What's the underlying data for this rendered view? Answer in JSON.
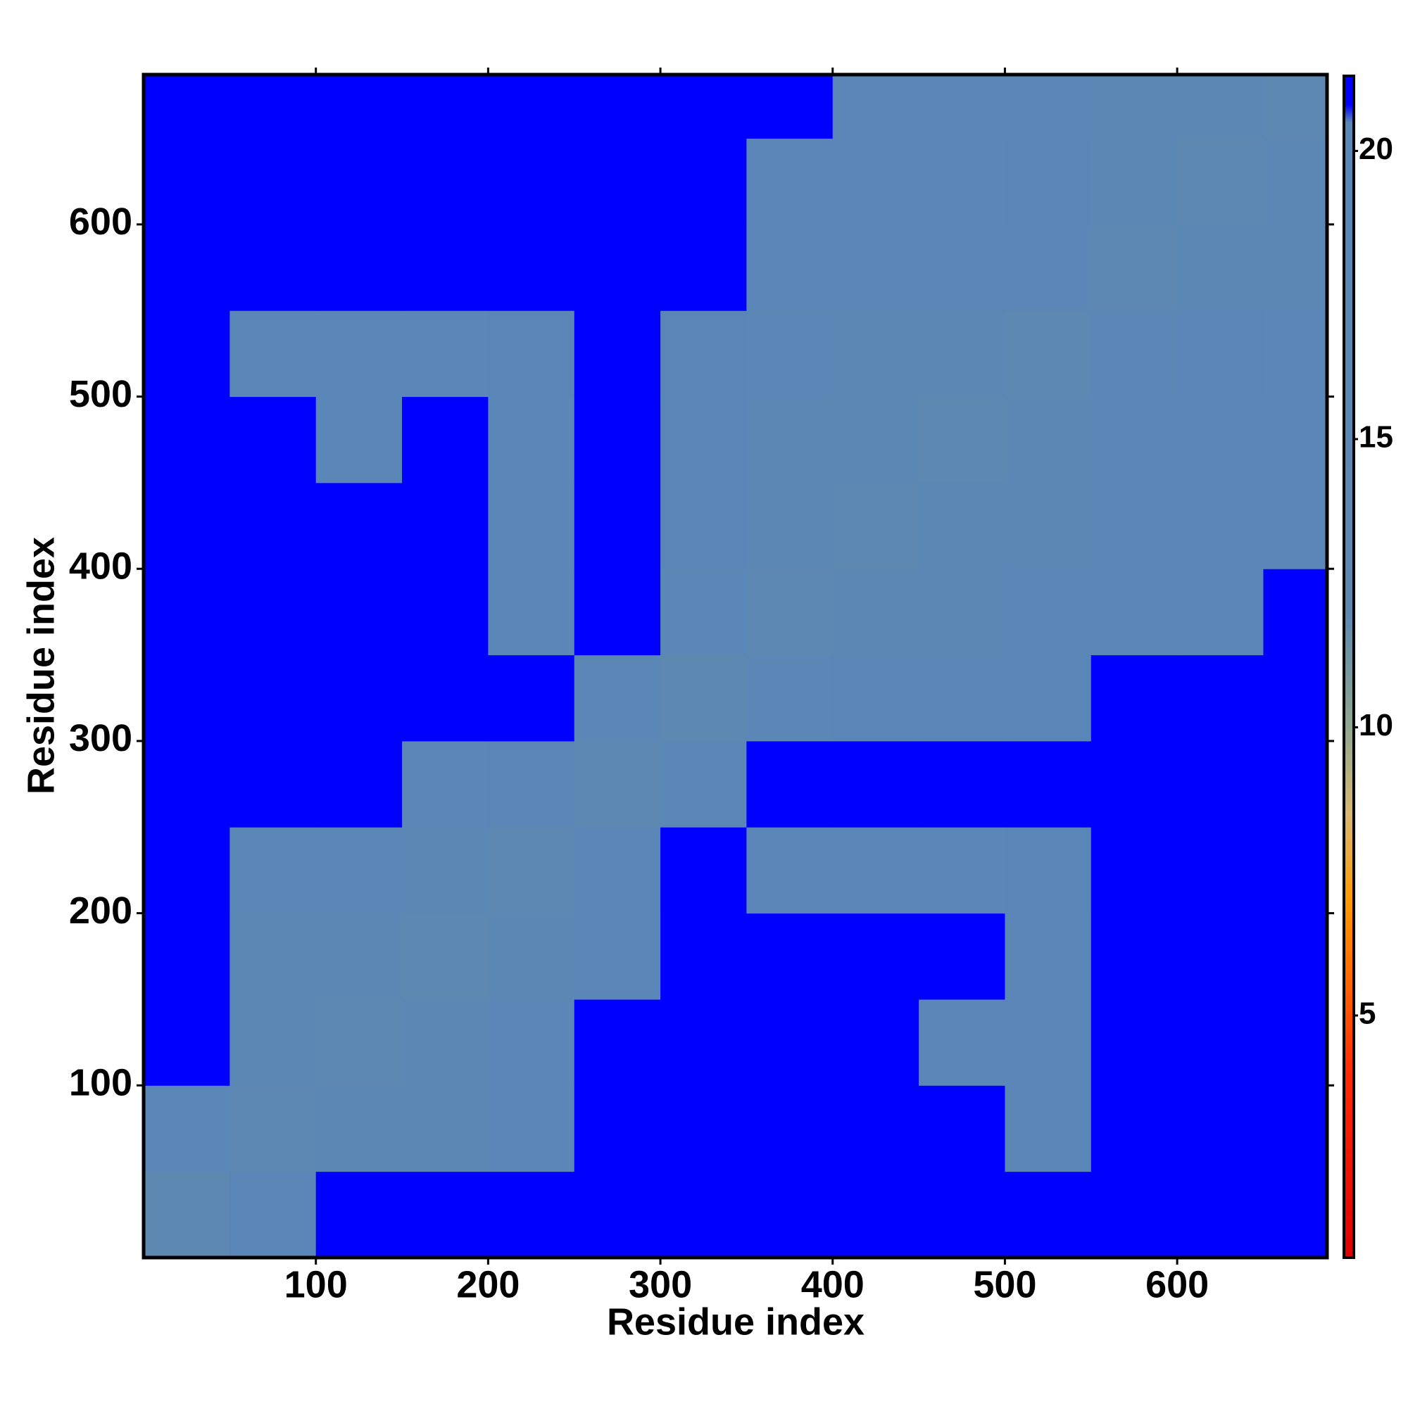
{
  "chart_data": {
    "type": "heatmap",
    "xlabel": "Residue index",
    "ylabel": "Residue index",
    "bins": [
      0,
      50,
      100,
      150,
      200,
      250,
      300,
      350,
      400,
      450,
      500,
      550,
      600,
      650,
      687
    ],
    "values": [
      [
        14,
        20,
        21,
        21,
        21,
        21,
        21,
        21,
        21,
        21,
        21,
        21,
        21,
        21
      ],
      [
        20,
        13,
        17,
        17,
        18,
        21,
        21,
        21,
        21,
        21,
        20,
        21,
        21,
        21
      ],
      [
        21,
        17,
        13,
        17,
        18,
        21,
        21,
        21,
        21,
        20,
        20,
        21,
        21,
        21
      ],
      [
        21,
        17,
        17,
        13,
        17,
        20,
        21,
        21,
        21,
        21,
        20,
        21,
        21,
        21
      ],
      [
        21,
        18,
        18,
        17,
        13,
        19,
        21,
        20,
        20,
        20,
        19,
        21,
        21,
        21
      ],
      [
        21,
        21,
        21,
        20,
        19,
        14,
        18,
        21,
        21,
        21,
        21,
        21,
        21,
        21
      ],
      [
        21,
        21,
        21,
        21,
        21,
        18,
        14,
        18,
        19,
        19,
        19,
        21,
        21,
        21
      ],
      [
        21,
        21,
        21,
        21,
        20,
        21,
        18,
        13,
        17,
        17,
        18,
        20,
        20,
        21
      ],
      [
        21,
        21,
        21,
        21,
        20,
        21,
        19,
        17,
        13,
        17,
        17,
        20,
        20,
        20
      ],
      [
        21,
        21,
        20,
        21,
        20,
        21,
        19,
        17,
        17,
        13,
        17,
        20,
        20,
        20
      ],
      [
        21,
        20,
        20,
        20,
        19,
        21,
        19,
        18,
        17,
        17,
        13,
        18,
        19,
        20
      ],
      [
        21,
        21,
        21,
        21,
        21,
        21,
        21,
        20,
        20,
        20,
        18,
        13,
        17,
        17
      ],
      [
        21,
        21,
        21,
        21,
        21,
        21,
        21,
        20,
        20,
        20,
        19,
        17,
        13,
        17
      ],
      [
        21,
        21,
        21,
        21,
        21,
        21,
        21,
        21,
        20,
        20,
        20,
        17,
        17,
        13
      ]
    ],
    "xlim": [
      0,
      687
    ],
    "ylim": [
      0,
      687
    ],
    "xticks": [
      100,
      200,
      300,
      400,
      500,
      600
    ],
    "yticks": [
      100,
      200,
      300,
      400,
      500,
      600
    ],
    "clim": [
      0.8,
      21.3
    ],
    "cticks": [
      5,
      10,
      15,
      20
    ],
    "colorscale": [
      {
        "value": 0.8,
        "color": "#e00000"
      },
      {
        "value": 4,
        "color": "#ff2a00"
      },
      {
        "value": 7,
        "color": "#ff9a00"
      },
      {
        "value": 8.5,
        "color": "#d9b870"
      },
      {
        "value": 10,
        "color": "#8fa88f"
      },
      {
        "value": 12,
        "color": "#5c88b0"
      },
      {
        "value": 20.5,
        "color": "#5a86b8"
      },
      {
        "value": 20.8,
        "color": "#0000ff"
      },
      {
        "value": 21.3,
        "color": "#0000ff"
      }
    ]
  }
}
